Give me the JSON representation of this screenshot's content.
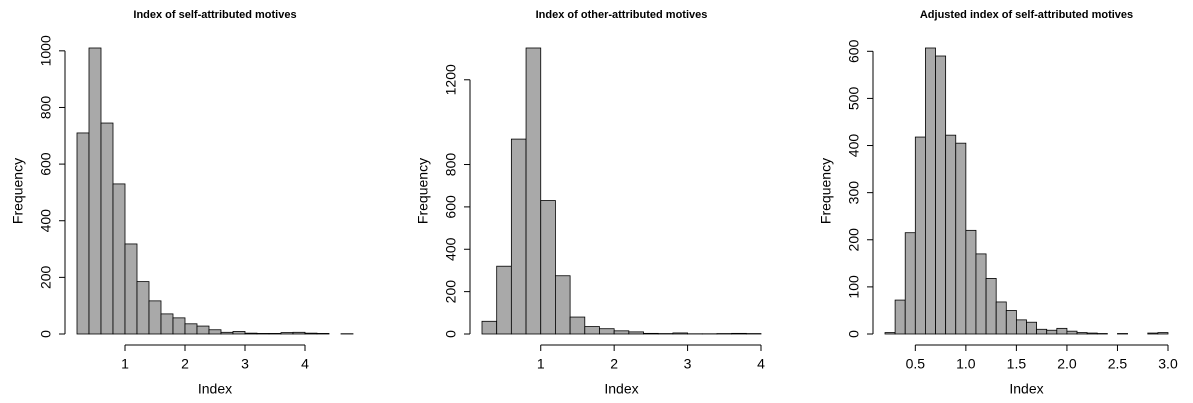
{
  "chart_data": [
    {
      "type": "histogram",
      "title": "Index of self-attributed motives",
      "xlabel": "Index",
      "ylabel": "Frequency",
      "bins": [
        0.2,
        0.4,
        0.6,
        0.8,
        1.0,
        1.2,
        1.4,
        1.6,
        1.8,
        2.0,
        2.2,
        2.4,
        2.6,
        2.8,
        3.0,
        3.2,
        3.4,
        3.6,
        3.8,
        4.0,
        4.2,
        4.4,
        4.6,
        4.8
      ],
      "counts": [
        710,
        1010,
        745,
        530,
        318,
        185,
        117,
        71,
        57,
        36,
        28,
        15,
        6,
        9,
        3,
        2,
        2,
        5,
        6,
        3,
        2,
        0,
        1
      ],
      "color": "#a9a9a9",
      "xlim": [
        0.2,
        4.8
      ],
      "ylim": [
        0,
        1010
      ],
      "xticks": [
        1,
        2,
        3,
        4
      ],
      "yticks": [
        0,
        200,
        400,
        600,
        800,
        1000
      ]
    },
    {
      "type": "histogram",
      "title": "Index of other-attributed motives",
      "xlabel": "Index",
      "ylabel": "Frequency",
      "bins": [
        0.2,
        0.4,
        0.6,
        0.8,
        1.0,
        1.2,
        1.4,
        1.6,
        1.8,
        2.0,
        2.2,
        2.4,
        2.6,
        2.8,
        3.0,
        3.2,
        3.4,
        3.6,
        3.8,
        4.0
      ],
      "counts": [
        60,
        320,
        920,
        1350,
        630,
        275,
        80,
        35,
        25,
        15,
        10,
        3,
        2,
        5,
        1,
        1,
        2,
        3,
        2
      ],
      "color": "#a9a9a9",
      "xlim": [
        0.2,
        4.0
      ],
      "ylim": [
        0,
        1350
      ],
      "xticks": [
        1,
        2,
        3,
        4
      ],
      "yticks": [
        0,
        200,
        400,
        600,
        800,
        1200
      ]
    },
    {
      "type": "histogram",
      "title": "Adjusted index of self-attributed motives",
      "xlabel": "Index",
      "ylabel": "Frequency",
      "bins": [
        0.2,
        0.3,
        0.4,
        0.5,
        0.6,
        0.7,
        0.8,
        0.9,
        1.0,
        1.1,
        1.2,
        1.3,
        1.4,
        1.5,
        1.6,
        1.7,
        1.8,
        1.9,
        2.0,
        2.1,
        2.2,
        2.3,
        2.4,
        2.5,
        2.6,
        2.7,
        2.8,
        2.9,
        3.0
      ],
      "counts": [
        3,
        72,
        215,
        418,
        607,
        590,
        422,
        405,
        220,
        170,
        118,
        68,
        50,
        30,
        25,
        10,
        8,
        12,
        6,
        3,
        2,
        1,
        0,
        1,
        0,
        0,
        2,
        3
      ],
      "color": "#a9a9a9",
      "xlim": [
        0.2,
        3.0
      ],
      "ylim": [
        0,
        607
      ],
      "xticks": [
        0.5,
        {
          "value": 1.0,
          "label": "1.0"
        },
        1.5,
        {
          "value": 2.0,
          "label": "2.0"
        },
        2.5,
        {
          "value": 3.0,
          "label": "3.0"
        }
      ],
      "yticks": [
        0,
        100,
        200,
        300,
        400,
        500,
        600
      ]
    }
  ]
}
